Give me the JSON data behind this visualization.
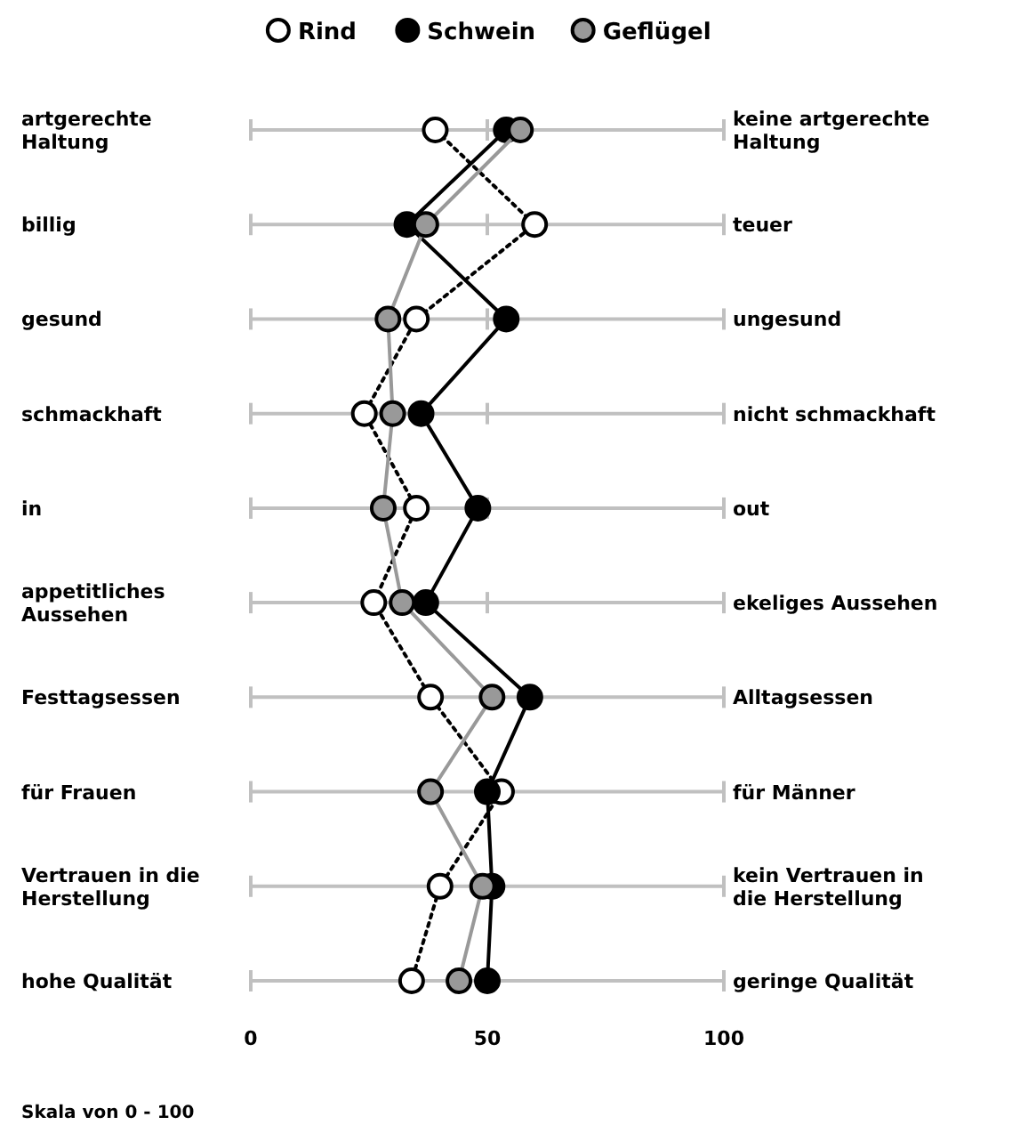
{
  "chart_data": {
    "type": "line",
    "orientation": "horizontal",
    "categories": [
      "artgerechte Haltung",
      "billig",
      "gesund",
      "schmackhaft",
      "in",
      "appetitliches Aussehen",
      "Festtagsessen",
      "für Frauen",
      "Vertrauen in die Herstellung",
      "hohe Qualität"
    ],
    "y2_categories": [
      "keine artgerechte Haltung",
      "teuer",
      "ungesund",
      "nicht schmackhaft",
      "out",
      "ekeliges Aussehen",
      "Alltagsessen",
      "für Männer",
      "kein Vertrauen in die Herstellung",
      "geringe Qualität"
    ],
    "series": [
      {
        "name": "Rind",
        "color": "#ffffff",
        "line_style": "dotted",
        "values": [
          39,
          60,
          35,
          24,
          35,
          26,
          38,
          53,
          40,
          34
        ]
      },
      {
        "name": "Schwein",
        "color": "#000000",
        "line_style": "solid",
        "values": [
          54,
          33,
          54,
          36,
          48,
          37,
          59,
          50,
          51,
          50
        ]
      },
      {
        "name": "Geflügel",
        "color": "#999999",
        "line_style": "solid",
        "values": [
          57,
          37,
          29,
          30,
          28,
          32,
          51,
          38,
          49,
          44
        ]
      }
    ],
    "xlim": [
      0,
      100
    ],
    "xticks": [
      0,
      50,
      100
    ],
    "grid": "y",
    "legend": "top",
    "marker": "circle",
    "annotations": [
      "Skala von 0 - 100"
    ]
  }
}
